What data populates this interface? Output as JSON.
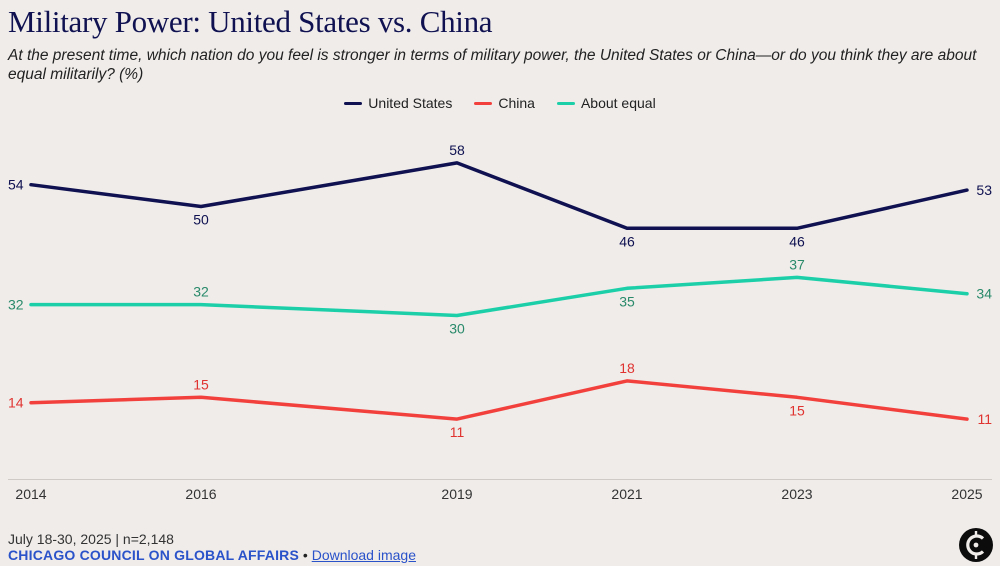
{
  "title": "Military Power: United States vs. China",
  "subtitle": "At the present time, which nation do you feel is stronger in terms of military power, the United States or China—or do you think they are about equal militarily? (%)",
  "chart_data": {
    "type": "line",
    "title": "Military Power: United States vs. China",
    "x": [
      "2014",
      "2016",
      "2019",
      "2021",
      "2023",
      "2025"
    ],
    "ylim": [
      0,
      65
    ],
    "grid": false,
    "legend_position": "top-center",
    "series": [
      {
        "name": "United States",
        "color": "#0f1150",
        "values": [
          54,
          50,
          58,
          46,
          46,
          53
        ]
      },
      {
        "name": "China",
        "color": "#f2413d",
        "values": [
          14,
          15,
          11,
          18,
          15,
          11
        ]
      },
      {
        "name": "About equal",
        "color": "#1ccfa9",
        "values": [
          32,
          32,
          30,
          35,
          37,
          34
        ]
      }
    ]
  },
  "footer": {
    "date": "July 18-30, 2025 | n=2,148",
    "org": "CHICAGO COUNCIL ON GLOBAL AFFAIRS",
    "separator": "•",
    "download": "Download image"
  },
  "logo_icon": "chicago-council-logo"
}
